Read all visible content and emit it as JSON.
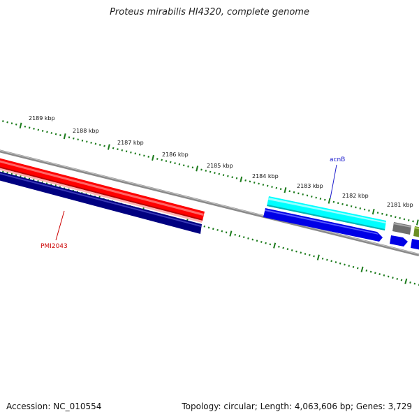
{
  "title": "Proteus mirabilis HI4320, complete genome",
  "footer": {
    "accession": "Accession: NC_010554",
    "summary": "Topology: circular; Length: 4,063,606 bp; Genes: 3,729"
  },
  "ticks": [
    {
      "label": "2189 kbp"
    },
    {
      "label": "2188 kbp"
    },
    {
      "label": "2187 kbp"
    },
    {
      "label": "2186 kbp"
    },
    {
      "label": "2185 kbp"
    },
    {
      "label": "2184 kbp"
    },
    {
      "label": "2183 kbp"
    },
    {
      "label": "2182 kbp"
    },
    {
      "label": "2181 kbp"
    }
  ],
  "genes": {
    "acnB": {
      "label": "acnB",
      "color": "#00ffff"
    },
    "PMI2043": {
      "label": "PMI2043",
      "color": "#ff0000"
    }
  },
  "colors": {
    "backbone": "#808080",
    "tick_marks": "#1a7a1a",
    "forward_dark": "#0000cd",
    "reverse_dark": "#000080",
    "grey_gene": "#6e6e6e",
    "olive_gene": "#6b8e23",
    "acnB_label": "#1a1acc",
    "PMI2043_label": "#cc0000"
  }
}
